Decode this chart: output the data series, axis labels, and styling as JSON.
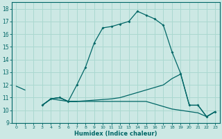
{
  "xlabel": "Humidex (Indice chaleur)",
  "bg_color": "#cce8e4",
  "grid_color": "#aad8d0",
  "line_color": "#006666",
  "xlim": [
    -0.5,
    23.5
  ],
  "ylim": [
    9,
    18.5
  ],
  "xticks": [
    0,
    1,
    2,
    3,
    4,
    5,
    6,
    7,
    8,
    9,
    10,
    11,
    12,
    13,
    14,
    15,
    16,
    17,
    18,
    19,
    20,
    21,
    22,
    23
  ],
  "yticks": [
    9,
    10,
    11,
    12,
    13,
    14,
    15,
    16,
    17,
    18
  ],
  "series0_x": [
    0,
    1,
    2,
    3,
    4,
    5,
    6,
    7
  ],
  "series0_y": [
    11.9,
    11.6,
    null,
    10.4,
    10.9,
    10.8,
    10.7,
    10.7
  ],
  "series1_x": [
    3,
    4,
    5,
    6,
    7,
    8,
    9,
    10,
    11,
    12,
    13,
    14,
    15,
    16,
    17,
    18,
    19,
    20,
    21,
    22,
    23
  ],
  "series1_y": [
    10.4,
    10.9,
    11.0,
    10.7,
    12.0,
    13.4,
    15.3,
    16.5,
    16.6,
    16.8,
    17.0,
    17.8,
    17.5,
    17.2,
    16.7,
    14.6,
    12.9,
    10.4,
    10.4,
    9.5,
    9.9
  ],
  "series2_x": [
    3,
    4,
    5,
    6,
    7,
    8,
    9,
    10,
    11,
    12,
    13,
    14,
    15,
    16,
    17,
    18,
    19,
    20,
    21,
    22,
    23
  ],
  "series2_y": [
    10.4,
    10.9,
    11.0,
    10.7,
    10.7,
    10.75,
    10.8,
    10.85,
    10.9,
    11.0,
    11.2,
    11.4,
    11.6,
    11.8,
    12.0,
    12.5,
    12.85,
    10.4,
    10.4,
    9.5,
    9.9
  ],
  "series3_x": [
    3,
    4,
    5,
    6,
    7,
    8,
    9,
    10,
    11,
    12,
    13,
    14,
    15,
    16,
    17,
    18,
    19,
    20,
    21,
    22,
    23
  ],
  "series3_y": [
    10.4,
    10.9,
    11.0,
    10.7,
    10.7,
    10.7,
    10.7,
    10.7,
    10.7,
    10.7,
    10.7,
    10.7,
    10.7,
    10.5,
    10.3,
    10.1,
    10.0,
    9.9,
    9.8,
    9.5,
    9.9
  ]
}
